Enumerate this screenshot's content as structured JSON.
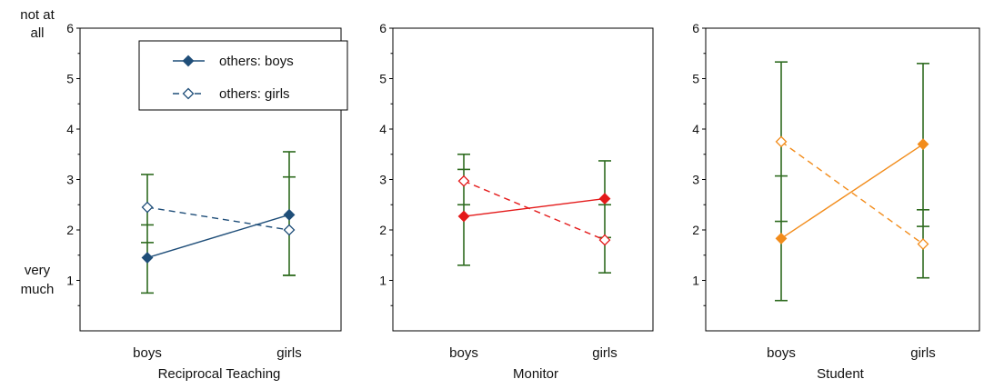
{
  "figure": {
    "side_labels": {
      "top": [
        "not at",
        "all"
      ],
      "bottom": [
        "very",
        "much"
      ]
    }
  },
  "legend": {
    "entries": [
      {
        "label": "others: boys",
        "style": "solid",
        "marker": "filled-diamond"
      },
      {
        "label": "others: girls",
        "style": "dashed",
        "marker": "open-diamond"
      }
    ]
  },
  "chart_data": [
    {
      "type": "line",
      "xlabel": "Reciprocal Teaching",
      "categories": [
        "boys",
        "girls"
      ],
      "yticks": [
        1,
        2,
        3,
        4,
        5,
        6
      ],
      "ylim": [
        0,
        6
      ],
      "color": "#1f4e79",
      "errorbar_color": "#2e6b1f",
      "series": [
        {
          "name": "others: boys",
          "values": [
            1.45,
            2.3
          ],
          "low": [
            0.75,
            1.1
          ],
          "high": [
            3.1,
            3.55
          ],
          "inner_low": [
            1.75,
            1.1
          ],
          "inner_high": [
            2.1,
            3.05
          ]
        },
        {
          "name": "others: girls",
          "values": [
            2.45,
            2.0
          ],
          "low": [
            0.75,
            0.95
          ],
          "high": [
            3.1,
            3.55
          ],
          "inner_low": [
            1.75,
            1.1
          ],
          "inner_high": [
            2.1,
            3.05
          ]
        }
      ]
    },
    {
      "type": "line",
      "xlabel": "Monitor",
      "categories": [
        "boys",
        "girls"
      ],
      "yticks": [
        1,
        2,
        3,
        4,
        5,
        6
      ],
      "ylim": [
        0,
        6
      ],
      "color": "#e41a1a",
      "errorbar_color": "#2e6b1f",
      "series": [
        {
          "name": "others: boys",
          "values": [
            2.27,
            2.62
          ],
          "low": [
            1.3,
            1.15
          ],
          "high": [
            3.5,
            3.37
          ],
          "inner_low": [
            2.5,
            1.85
          ],
          "inner_high": [
            3.2,
            2.5
          ]
        },
        {
          "name": "others: girls",
          "values": [
            2.97,
            1.8
          ],
          "low": [
            1.3,
            1.15
          ],
          "high": [
            3.5,
            3.37
          ],
          "inner_low": [
            2.5,
            1.85
          ],
          "inner_high": [
            3.2,
            2.5
          ]
        }
      ]
    },
    {
      "type": "line",
      "xlabel": "Student",
      "categories": [
        "boys",
        "girls"
      ],
      "yticks": [
        1,
        2,
        3,
        4,
        5,
        6
      ],
      "ylim": [
        0,
        6
      ],
      "color": "#f28c1b",
      "errorbar_color": "#2e6b1f",
      "series": [
        {
          "name": "others: boys",
          "values": [
            1.83,
            3.7
          ],
          "low": [
            0.6,
            1.05
          ],
          "high": [
            5.33,
            5.3
          ],
          "inner_low": [
            2.17,
            2.07
          ],
          "inner_high": [
            3.07,
            2.4
          ]
        },
        {
          "name": "others: girls",
          "values": [
            3.75,
            1.72
          ],
          "low": [
            0.6,
            1.05
          ],
          "high": [
            5.33,
            5.3
          ],
          "inner_low": [
            2.17,
            2.07
          ],
          "inner_high": [
            3.07,
            2.4
          ]
        }
      ]
    }
  ]
}
